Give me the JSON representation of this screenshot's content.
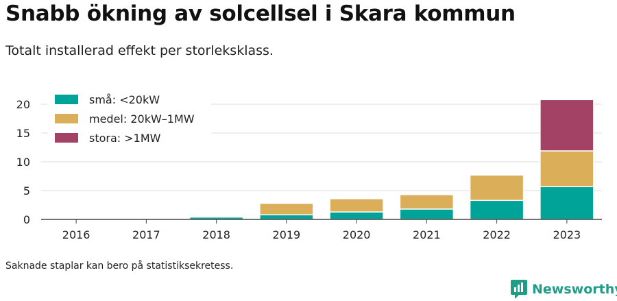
{
  "title": "Snabb ökning av solcellsel i Skara kommun",
  "subtitle": "Totalt installerad effekt per storleksklass.",
  "footnote": "Saknade staplar kan bero på statistiksekretess.",
  "brand": {
    "name": "Newsworthy",
    "icon": "newsworthy-logo-icon",
    "color": "#1f9d86"
  },
  "chart_data": {
    "type": "bar",
    "stacked": true,
    "categories": [
      "2016",
      "2017",
      "2018",
      "2019",
      "2020",
      "2021",
      "2022",
      "2023"
    ],
    "series": [
      {
        "name": "små: <20kW",
        "color": "#00a398",
        "values": [
          0,
          0,
          0.4,
          0.8,
          1.3,
          1.8,
          3.3,
          5.7
        ]
      },
      {
        "name": "medel: 20kW–1MW",
        "color": "#dbaf5a",
        "values": [
          0,
          0,
          0,
          2.0,
          2.3,
          2.5,
          4.4,
          6.2
        ]
      },
      {
        "name": "stora: >1MW",
        "color": "#a44266",
        "values": [
          0,
          0,
          0,
          0,
          0,
          0,
          0,
          8.9
        ]
      }
    ],
    "y_ticks": [
      "0",
      "5",
      "10",
      "15",
      "20"
    ],
    "ylim": [
      0,
      22
    ],
    "grid": "horizontal",
    "legend_position": "top-left",
    "xlabel": "",
    "ylabel": ""
  }
}
